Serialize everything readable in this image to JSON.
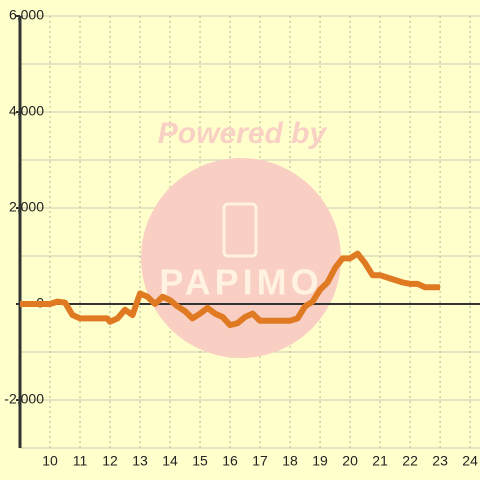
{
  "chart_data": {
    "type": "line",
    "watermark": {
      "line1": "Powered by",
      "line2": "PAPIMO"
    },
    "x": [
      9,
      9.5,
      10,
      10.25,
      10.5,
      10.75,
      11,
      11.5,
      11.9,
      12,
      12.25,
      12.5,
      12.75,
      13,
      13.25,
      13.5,
      13.75,
      14,
      14.25,
      14.5,
      14.75,
      15,
      15.25,
      15.5,
      15.75,
      16,
      16.25,
      16.5,
      16.75,
      17,
      17.5,
      18,
      18.25,
      18.5,
      18.75,
      19,
      19.25,
      19.5,
      19.75,
      20,
      20.25,
      20.5,
      20.75,
      21,
      21.25,
      21.5,
      21.75,
      22,
      22.25,
      22.5,
      22.75,
      23
    ],
    "series": [
      {
        "color": "#e07a22",
        "values": [
          0,
          0,
          0,
          50,
          30,
          -230,
          -300,
          -300,
          -300,
          -370,
          -300,
          -120,
          -230,
          220,
          150,
          0,
          150,
          80,
          -50,
          -150,
          -300,
          -200,
          -80,
          -200,
          -270,
          -440,
          -400,
          -270,
          -200,
          -350,
          -350,
          -350,
          -300,
          -50,
          50,
          300,
          450,
          750,
          950,
          950,
          1050,
          850,
          600,
          600,
          550,
          500,
          450,
          420,
          420,
          350,
          350,
          350
        ]
      }
    ],
    "xlim": [
      9,
      24.33
    ],
    "ylim": [
      -3000,
      6000
    ],
    "xticks": [
      10,
      11,
      12,
      13,
      14,
      15,
      16,
      17,
      18,
      19,
      20,
      21,
      22,
      23,
      24
    ],
    "yticks": [
      {
        "value": -2000,
        "label": "-2,000"
      },
      0,
      {
        "value": 2000,
        "label": "2,000"
      },
      {
        "value": 4000,
        "label": "4,000"
      },
      {
        "value": 6000,
        "label": "6,000"
      }
    ],
    "yminor": [
      -3000,
      -1000,
      1000,
      3000,
      5000
    ],
    "grid": true
  }
}
